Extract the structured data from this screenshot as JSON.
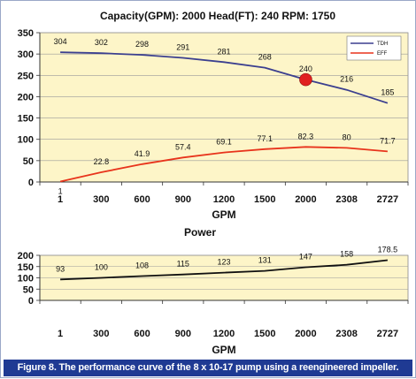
{
  "caption": "Figure 8. The performance curve of the 8 x 10-17 pump using a reengineered impeller.",
  "chart_data": [
    {
      "type": "line",
      "title": "Capacity(GPM): 2000   Head(FT): 240   RPM: 1750",
      "xlabel": "GPM",
      "ylabel": "",
      "categories": [
        "1",
        "300",
        "600",
        "900",
        "1200",
        "1500",
        "2000",
        "2308",
        "2727"
      ],
      "ylim": [
        0,
        350
      ],
      "yticks": [
        0,
        50,
        100,
        150,
        200,
        250,
        300,
        350
      ],
      "grid": true,
      "legend": "top-right",
      "series": [
        {
          "name": "TDH",
          "color": "#3b3f8f",
          "values": [
            304,
            302,
            298,
            291,
            281,
            268,
            240,
            216,
            185
          ]
        },
        {
          "name": "EFF",
          "color": "#e8341c",
          "values": [
            1,
            22.8,
            41.9,
            57.4,
            69.1,
            77.1,
            82.3,
            80,
            71.7
          ]
        }
      ],
      "marker": {
        "category": "2000",
        "value": 240,
        "color": "#e02020"
      }
    },
    {
      "type": "line",
      "title": "Power",
      "xlabel": "GPM",
      "ylabel": "",
      "categories": [
        "1",
        "300",
        "600",
        "900",
        "1200",
        "1500",
        "2000",
        "2308",
        "2727"
      ],
      "ylim": [
        0,
        200
      ],
      "yticks": [
        0,
        50,
        100,
        150,
        200
      ],
      "grid": true,
      "series": [
        {
          "color": "#111111",
          "values": [
            93,
            100,
            108,
            115,
            123,
            131,
            147,
            158,
            178.5
          ]
        }
      ]
    }
  ]
}
